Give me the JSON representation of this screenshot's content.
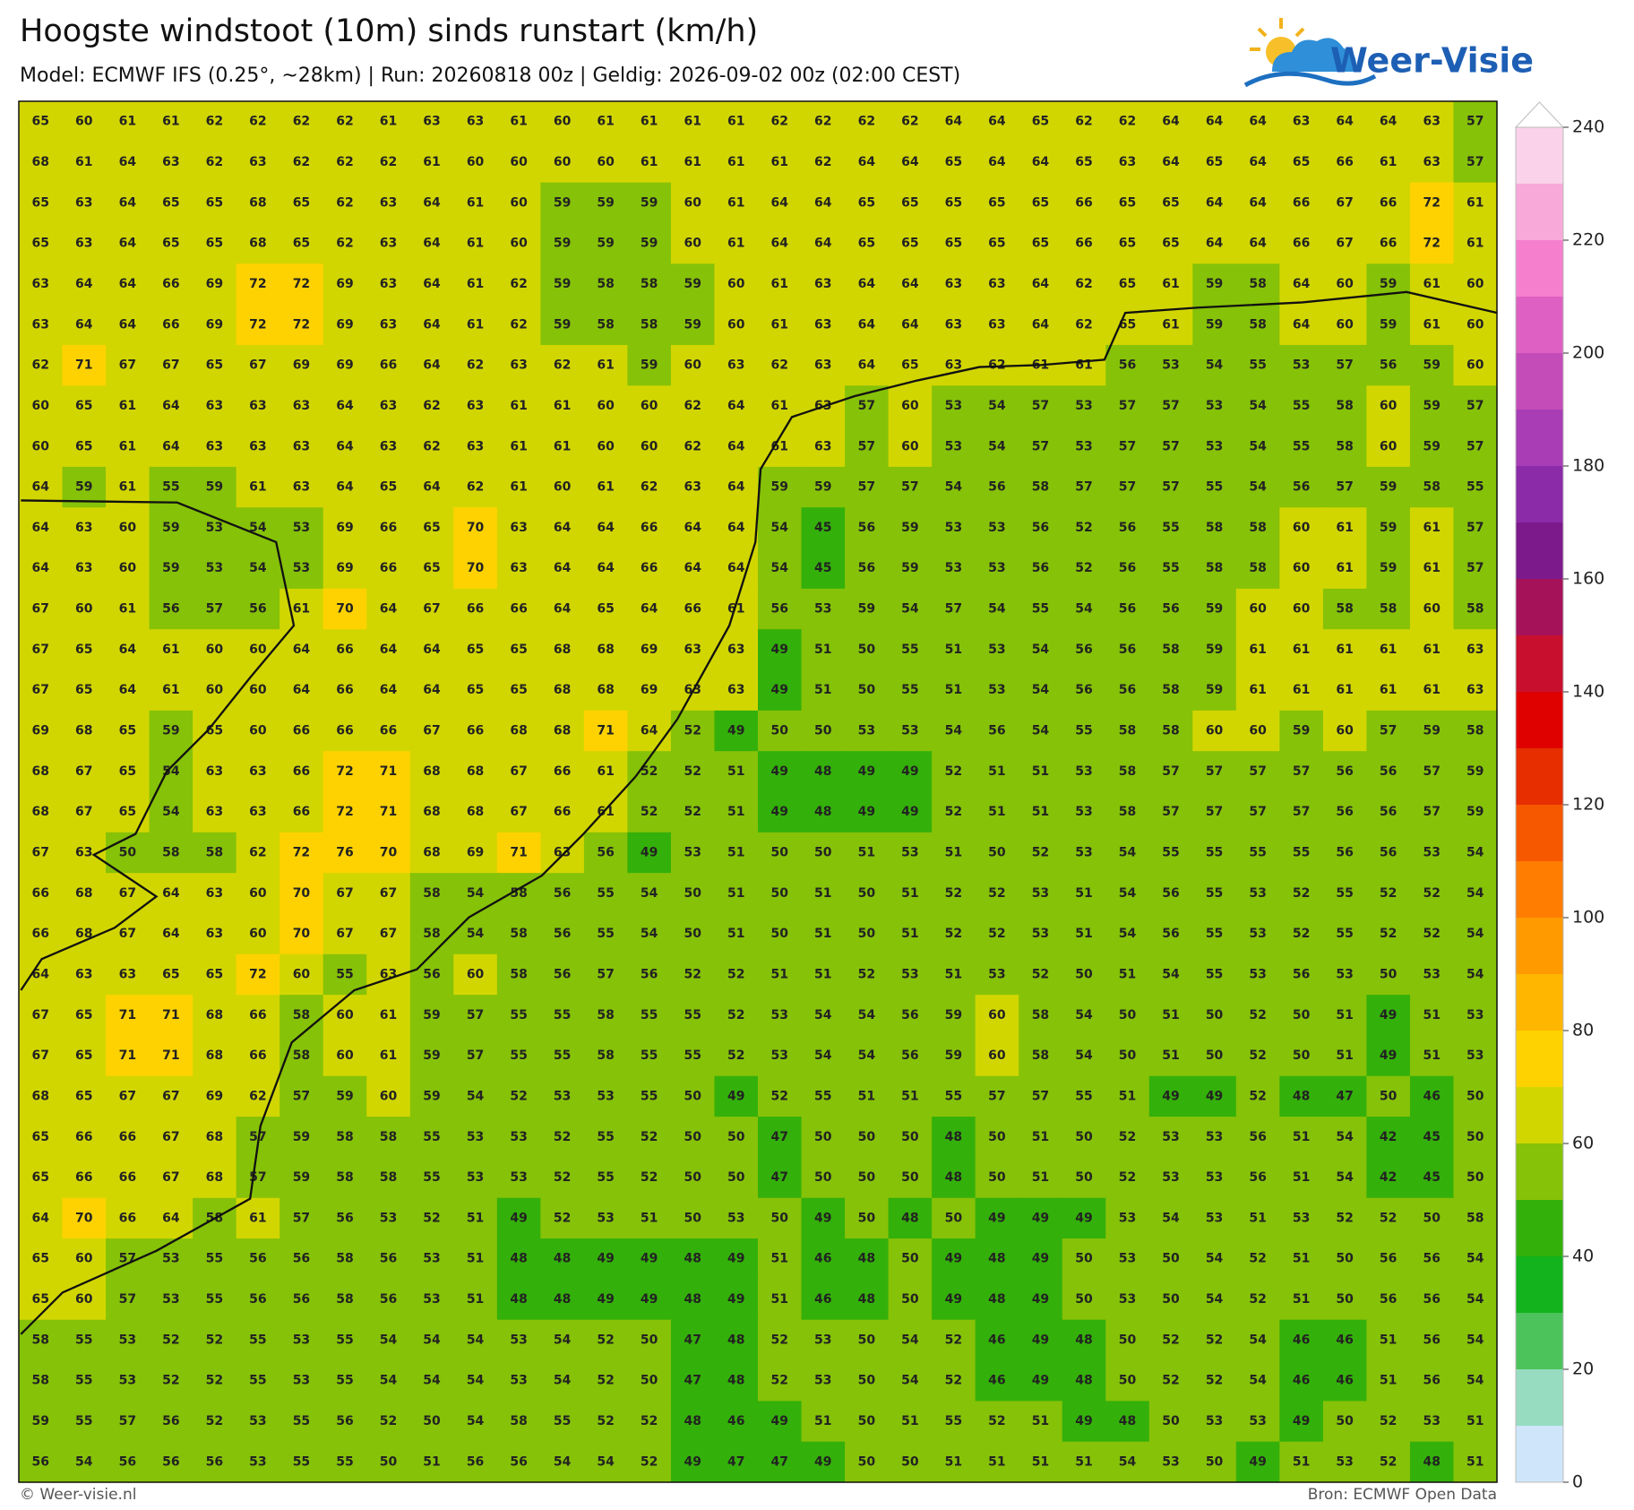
{
  "header": {
    "title": "Hoogste windstoot (10m) sinds runstart (km/h)",
    "subtitle": "Model: ECMWF IFS (0.25°, ~28km)  |  Run: 20260818 00z  |  Geldig: 2026-09-02 00z (02:00 CEST)",
    "logo": "Weer-Visie"
  },
  "grid": {
    "rows": [
      [
        65,
        60,
        61,
        61,
        62,
        62,
        62,
        62,
        61,
        63,
        63,
        61,
        60,
        61,
        61,
        61,
        61,
        62,
        62,
        62,
        62,
        64,
        64,
        65,
        62,
        62,
        64,
        64,
        64,
        63,
        64,
        64,
        63,
        57
      ],
      [
        68,
        61,
        64,
        63,
        62,
        63,
        62,
        62,
        62,
        61,
        60,
        60,
        60,
        60,
        61,
        61,
        61,
        61,
        62,
        64,
        64,
        65,
        64,
        64,
        65,
        63,
        64,
        65,
        64,
        65,
        66,
        61,
        63,
        57
      ],
      [
        65,
        63,
        64,
        65,
        65,
        68,
        65,
        62,
        63,
        64,
        61,
        60,
        59,
        59,
        59,
        60,
        61,
        64,
        64,
        65,
        65,
        65,
        65,
        65,
        66,
        65,
        65,
        64,
        64,
        66,
        67,
        66,
        72,
        61
      ],
      [
        65,
        63,
        64,
        65,
        65,
        68,
        65,
        62,
        63,
        64,
        61,
        60,
        59,
        59,
        59,
        60,
        61,
        64,
        64,
        65,
        65,
        65,
        65,
        65,
        66,
        65,
        65,
        64,
        64,
        66,
        67,
        66,
        72,
        61
      ],
      [
        63,
        64,
        64,
        66,
        69,
        72,
        72,
        69,
        63,
        64,
        61,
        62,
        59,
        58,
        58,
        59,
        60,
        61,
        63,
        64,
        64,
        63,
        63,
        64,
        62,
        65,
        61,
        59,
        58,
        64,
        60,
        59,
        61,
        60
      ],
      [
        63,
        64,
        64,
        66,
        69,
        72,
        72,
        69,
        63,
        64,
        61,
        62,
        59,
        58,
        58,
        59,
        60,
        61,
        63,
        64,
        64,
        63,
        63,
        64,
        62,
        65,
        61,
        59,
        58,
        64,
        60,
        59,
        61,
        60
      ],
      [
        62,
        71,
        67,
        67,
        65,
        67,
        69,
        69,
        66,
        64,
        62,
        63,
        62,
        61,
        59,
        60,
        63,
        62,
        63,
        64,
        65,
        63,
        62,
        61,
        61,
        56,
        53,
        54,
        55,
        53,
        57,
        56,
        59,
        60
      ],
      [
        60,
        65,
        61,
        64,
        63,
        63,
        63,
        64,
        63,
        62,
        63,
        61,
        61,
        60,
        60,
        62,
        64,
        61,
        63,
        57,
        60,
        53,
        54,
        57,
        53,
        57,
        57,
        53,
        54,
        55,
        58,
        60,
        59,
        57
      ],
      [
        60,
        65,
        61,
        64,
        63,
        63,
        63,
        64,
        63,
        62,
        63,
        61,
        61,
        60,
        60,
        62,
        64,
        61,
        63,
        57,
        60,
        53,
        54,
        57,
        53,
        57,
        57,
        53,
        54,
        55,
        58,
        60,
        59,
        57
      ],
      [
        64,
        59,
        61,
        55,
        59,
        61,
        63,
        64,
        65,
        64,
        62,
        61,
        60,
        61,
        62,
        63,
        64,
        59,
        59,
        57,
        57,
        54,
        56,
        58,
        57,
        57,
        57,
        55,
        54,
        56,
        57,
        59,
        58,
        55
      ],
      [
        64,
        63,
        60,
        59,
        53,
        54,
        53,
        69,
        66,
        65,
        70,
        63,
        64,
        64,
        66,
        64,
        64,
        54,
        45,
        56,
        59,
        53,
        53,
        56,
        52,
        56,
        55,
        58,
        58,
        60,
        61,
        59,
        61,
        57
      ],
      [
        64,
        63,
        60,
        59,
        53,
        54,
        53,
        69,
        66,
        65,
        70,
        63,
        64,
        64,
        66,
        64,
        64,
        54,
        45,
        56,
        59,
        53,
        53,
        56,
        52,
        56,
        55,
        58,
        58,
        60,
        61,
        59,
        61,
        57
      ],
      [
        67,
        60,
        61,
        56,
        57,
        56,
        61,
        70,
        64,
        67,
        66,
        66,
        64,
        65,
        64,
        66,
        61,
        56,
        53,
        59,
        54,
        57,
        54,
        55,
        54,
        56,
        56,
        59,
        60,
        60,
        58,
        58,
        60,
        58
      ],
      [
        67,
        65,
        64,
        61,
        60,
        60,
        64,
        66,
        64,
        64,
        65,
        65,
        68,
        68,
        69,
        63,
        63,
        49,
        51,
        50,
        55,
        51,
        53,
        54,
        56,
        56,
        58,
        59,
        61,
        61,
        61,
        61,
        61,
        63
      ],
      [
        67,
        65,
        64,
        61,
        60,
        60,
        64,
        66,
        64,
        64,
        65,
        65,
        68,
        68,
        69,
        63,
        63,
        49,
        51,
        50,
        55,
        51,
        53,
        54,
        56,
        56,
        58,
        59,
        61,
        61,
        61,
        61,
        61,
        63
      ],
      [
        69,
        68,
        65,
        59,
        65,
        60,
        66,
        66,
        66,
        67,
        66,
        68,
        68,
        71,
        64,
        52,
        49,
        50,
        50,
        53,
        53,
        54,
        56,
        54,
        55,
        58,
        58,
        60,
        60,
        59,
        60,
        57,
        59,
        58
      ],
      [
        68,
        67,
        65,
        54,
        63,
        63,
        66,
        72,
        71,
        68,
        68,
        67,
        66,
        61,
        52,
        52,
        51,
        49,
        48,
        49,
        49,
        52,
        51,
        51,
        53,
        58,
        57,
        57,
        57,
        57,
        56,
        56,
        57,
        59
      ],
      [
        68,
        67,
        65,
        54,
        63,
        63,
        66,
        72,
        71,
        68,
        68,
        67,
        66,
        61,
        52,
        52,
        51,
        49,
        48,
        49,
        49,
        52,
        51,
        51,
        53,
        58,
        57,
        57,
        57,
        57,
        56,
        56,
        57,
        59
      ],
      [
        67,
        63,
        50,
        58,
        58,
        62,
        72,
        76,
        70,
        68,
        69,
        71,
        63,
        56,
        49,
        53,
        51,
        50,
        50,
        51,
        53,
        51,
        50,
        52,
        53,
        54,
        55,
        55,
        55,
        55,
        56,
        56,
        53,
        54
      ],
      [
        66,
        68,
        67,
        64,
        63,
        60,
        70,
        67,
        67,
        58,
        54,
        58,
        56,
        55,
        54,
        50,
        51,
        50,
        51,
        50,
        51,
        52,
        52,
        53,
        51,
        54,
        56,
        55,
        53,
        52,
        55,
        52,
        52,
        54
      ],
      [
        66,
        68,
        67,
        64,
        63,
        60,
        70,
        67,
        67,
        58,
        54,
        58,
        56,
        55,
        54,
        50,
        51,
        50,
        51,
        50,
        51,
        52,
        52,
        53,
        51,
        54,
        56,
        55,
        53,
        52,
        55,
        52,
        52,
        54
      ],
      [
        64,
        63,
        63,
        65,
        65,
        72,
        60,
        55,
        63,
        56,
        60,
        58,
        56,
        57,
        56,
        52,
        52,
        51,
        51,
        52,
        53,
        51,
        53,
        52,
        50,
        51,
        54,
        55,
        53,
        56,
        53,
        50,
        53,
        54
      ],
      [
        67,
        65,
        71,
        71,
        68,
        66,
        58,
        60,
        61,
        59,
        57,
        55,
        55,
        58,
        55,
        55,
        52,
        53,
        54,
        54,
        56,
        59,
        60,
        58,
        54,
        50,
        51,
        50,
        52,
        50,
        51,
        49,
        51,
        53
      ],
      [
        67,
        65,
        71,
        71,
        68,
        66,
        58,
        60,
        61,
        59,
        57,
        55,
        55,
        58,
        55,
        55,
        52,
        53,
        54,
        54,
        56,
        59,
        60,
        58,
        54,
        50,
        51,
        50,
        52,
        50,
        51,
        49,
        51,
        53
      ],
      [
        68,
        65,
        67,
        67,
        69,
        62,
        57,
        59,
        60,
        59,
        54,
        52,
        53,
        53,
        55,
        50,
        49,
        52,
        55,
        51,
        51,
        55,
        57,
        57,
        55,
        51,
        49,
        49,
        52,
        48,
        47,
        50,
        46,
        50
      ],
      [
        65,
        66,
        66,
        67,
        68,
        57,
        59,
        58,
        58,
        55,
        53,
        53,
        52,
        55,
        52,
        50,
        50,
        47,
        50,
        50,
        50,
        48,
        50,
        51,
        50,
        52,
        53,
        53,
        56,
        51,
        54,
        42,
        45,
        50
      ],
      [
        65,
        66,
        66,
        67,
        68,
        57,
        59,
        58,
        58,
        55,
        53,
        53,
        52,
        55,
        52,
        50,
        50,
        47,
        50,
        50,
        50,
        48,
        50,
        51,
        50,
        52,
        53,
        53,
        56,
        51,
        54,
        42,
        45,
        50
      ],
      [
        64,
        70,
        66,
        64,
        58,
        61,
        57,
        56,
        53,
        52,
        51,
        49,
        52,
        53,
        51,
        50,
        53,
        50,
        49,
        50,
        48,
        50,
        49,
        49,
        49,
        53,
        54,
        53,
        51,
        53,
        52,
        52,
        50,
        58
      ],
      [
        65,
        60,
        57,
        53,
        55,
        56,
        56,
        58,
        56,
        53,
        51,
        48,
        48,
        49,
        49,
        48,
        49,
        51,
        46,
        48,
        50,
        49,
        48,
        49,
        50,
        53,
        50,
        54,
        52,
        51,
        50,
        56,
        56,
        54
      ],
      [
        65,
        60,
        57,
        53,
        55,
        56,
        56,
        58,
        56,
        53,
        51,
        48,
        48,
        49,
        49,
        48,
        49,
        51,
        46,
        48,
        50,
        49,
        48,
        49,
        50,
        53,
        50,
        54,
        52,
        51,
        50,
        56,
        56,
        54
      ],
      [
        58,
        55,
        53,
        52,
        52,
        55,
        53,
        55,
        54,
        54,
        54,
        53,
        54,
        52,
        50,
        47,
        48,
        52,
        53,
        50,
        54,
        52,
        46,
        49,
        48,
        50,
        52,
        52,
        54,
        46,
        46,
        51,
        56,
        54
      ],
      [
        58,
        55,
        53,
        52,
        52,
        55,
        53,
        55,
        54,
        54,
        54,
        53,
        54,
        52,
        50,
        47,
        48,
        52,
        53,
        50,
        54,
        52,
        46,
        49,
        48,
        50,
        52,
        52,
        54,
        46,
        46,
        51,
        56,
        54
      ],
      [
        59,
        55,
        57,
        56,
        52,
        53,
        55,
        56,
        52,
        50,
        54,
        58,
        55,
        52,
        52,
        48,
        46,
        49,
        51,
        50,
        51,
        55,
        52,
        51,
        49,
        48,
        50,
        53,
        53,
        49,
        50,
        52,
        53,
        51
      ],
      [
        56,
        54,
        56,
        56,
        56,
        53,
        55,
        55,
        50,
        51,
        56,
        56,
        54,
        54,
        52,
        49,
        47,
        47,
        49,
        50,
        50,
        51,
        51,
        51,
        51,
        54,
        53,
        50,
        49,
        51,
        53,
        52,
        48,
        51
      ]
    ]
  },
  "colorbar": {
    "lim": [
      0,
      240
    ],
    "ticks": [
      0,
      20,
      40,
      60,
      80,
      100,
      120,
      140,
      160,
      180,
      200,
      220,
      240
    ],
    "colors": [
      "#cfe6fa",
      "#97dcc0",
      "#4dc35c",
      "#12b31c",
      "#34b00a",
      "#86c208",
      "#d2d600",
      "#fed200",
      "#ffb600",
      "#ff9a00",
      "#ff7d00",
      "#f65800",
      "#e62e00",
      "#df0000",
      "#c8102e",
      "#a5125a",
      "#7c1a8c",
      "#8c2ba8",
      "#a83db6",
      "#c44cb9",
      "#de60c2",
      "#f57ecd",
      "#f8a9da",
      "#fad2ea"
    ],
    "over": "#ffffff"
  },
  "footer": {
    "left": "© Weer-visie.nl",
    "right": "Bron: ECMWF Open Data"
  }
}
